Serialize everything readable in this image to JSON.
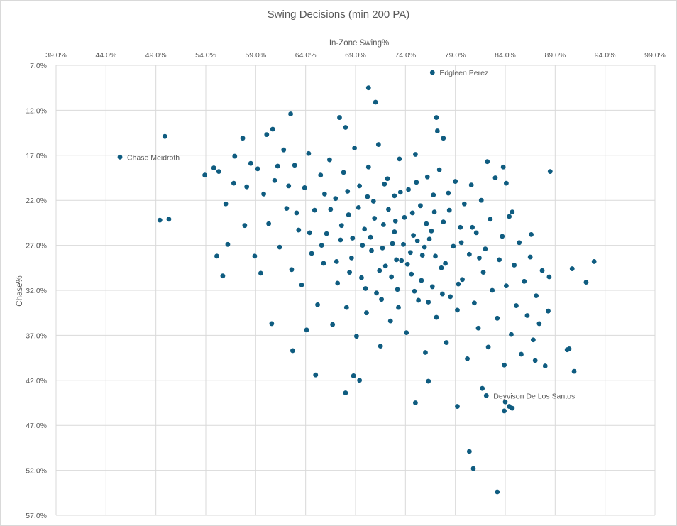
{
  "chart_data": {
    "type": "scatter",
    "title": "Swing Decisions (min 200 PA)",
    "xlabel": "In-Zone Swing%",
    "ylabel": "Chase%",
    "xlim": [
      39,
      99
    ],
    "ylim": [
      7,
      57
    ],
    "y_reversed": true,
    "x_axis_position": "top",
    "grid": true,
    "x_ticks": [
      "39.0%",
      "44.0%",
      "49.0%",
      "54.0%",
      "59.0%",
      "64.0%",
      "69.0%",
      "74.0%",
      "79.0%",
      "84.0%",
      "89.0%",
      "94.0%",
      "99.0%"
    ],
    "y_ticks": [
      "7.0%",
      "12.0%",
      "17.0%",
      "22.0%",
      "27.0%",
      "32.0%",
      "37.0%",
      "42.0%",
      "47.0%",
      "52.0%",
      "57.0%"
    ],
    "marker_color": "#0f5c80",
    "annotations": [
      {
        "label": "Edgleen Perez",
        "x": 76.7,
        "y": 7.8
      },
      {
        "label": "Chase Meidroth",
        "x": 45.4,
        "y": 17.2
      },
      {
        "label": "Deyvison De Los Santos",
        "x": 82.1,
        "y": 43.7
      }
    ],
    "points": [
      [
        49.9,
        14.9
      ],
      [
        49.4,
        24.2
      ],
      [
        50.3,
        24.1
      ],
      [
        53.9,
        19.2
      ],
      [
        54.8,
        18.4
      ],
      [
        55.3,
        18.8
      ],
      [
        55.1,
        28.2
      ],
      [
        55.7,
        30.4
      ],
      [
        56.0,
        22.4
      ],
      [
        56.2,
        26.9
      ],
      [
        56.8,
        20.1
      ],
      [
        56.9,
        17.1
      ],
      [
        57.7,
        15.1
      ],
      [
        58.1,
        20.5
      ],
      [
        58.5,
        17.9
      ],
      [
        57.9,
        24.8
      ],
      [
        58.9,
        28.2
      ],
      [
        59.5,
        30.1
      ],
      [
        60.1,
        14.7
      ],
      [
        60.7,
        14.1
      ],
      [
        60.6,
        35.7
      ],
      [
        62.5,
        12.4
      ],
      [
        62.7,
        38.7
      ],
      [
        64.1,
        36.4
      ],
      [
        65.0,
        41.4
      ],
      [
        67.4,
        12.8
      ],
      [
        68.0,
        13.9
      ],
      [
        68.0,
        43.4
      ],
      [
        68.8,
        41.5
      ],
      [
        69.4,
        42.0
      ],
      [
        70.3,
        9.5
      ],
      [
        71.0,
        11.1
      ],
      [
        77.1,
        12.8
      ],
      [
        77.2,
        14.3
      ],
      [
        77.8,
        15.1
      ],
      [
        75.0,
        44.5
      ],
      [
        76.3,
        42.1
      ],
      [
        79.2,
        44.9
      ],
      [
        81.7,
        42.9
      ],
      [
        84.0,
        44.4
      ],
      [
        83.9,
        45.4
      ],
      [
        84.4,
        44.9
      ],
      [
        84.7,
        45.1
      ],
      [
        80.4,
        49.9
      ],
      [
        80.8,
        51.8
      ],
      [
        83.2,
        54.4
      ],
      [
        88.5,
        18.8
      ],
      [
        92.9,
        28.8
      ],
      [
        90.7,
        29.6
      ],
      [
        92.1,
        31.1
      ],
      [
        90.2,
        38.6
      ],
      [
        90.4,
        38.5
      ],
      [
        90.9,
        41.0
      ],
      [
        88.0,
        40.4
      ],
      [
        88.3,
        34.3
      ],
      [
        88.4,
        30.5
      ],
      [
        87.7,
        29.8
      ],
      [
        86.6,
        25.8
      ],
      [
        84.7,
        23.3
      ],
      [
        84.1,
        20.1
      ],
      [
        83.8,
        18.3
      ],
      [
        82.2,
        17.7
      ],
      [
        87.0,
        39.8
      ],
      [
        87.4,
        35.7
      ],
      [
        59.2,
        18.5
      ],
      [
        59.8,
        21.3
      ],
      [
        60.3,
        24.6
      ],
      [
        60.9,
        19.8
      ],
      [
        61.4,
        27.2
      ],
      [
        61.8,
        16.4
      ],
      [
        62.1,
        22.9
      ],
      [
        62.6,
        29.7
      ],
      [
        62.9,
        18.1
      ],
      [
        63.3,
        25.3
      ],
      [
        63.6,
        31.4
      ],
      [
        63.9,
        20.6
      ],
      [
        64.3,
        16.8
      ],
      [
        64.6,
        27.9
      ],
      [
        64.9,
        23.1
      ],
      [
        65.2,
        33.6
      ],
      [
        65.5,
        19.2
      ],
      [
        65.8,
        29.0
      ],
      [
        66.1,
        25.7
      ],
      [
        66.4,
        17.5
      ],
      [
        66.7,
        35.8
      ],
      [
        67.0,
        21.8
      ],
      [
        67.2,
        31.2
      ],
      [
        67.5,
        26.4
      ],
      [
        67.8,
        18.9
      ],
      [
        68.1,
        33.9
      ],
      [
        68.3,
        23.6
      ],
      [
        68.6,
        28.4
      ],
      [
        68.9,
        16.2
      ],
      [
        69.1,
        37.1
      ],
      [
        69.4,
        20.4
      ],
      [
        69.6,
        30.6
      ],
      [
        69.9,
        25.2
      ],
      [
        70.1,
        34.5
      ],
      [
        70.3,
        18.3
      ],
      [
        70.6,
        27.6
      ],
      [
        70.8,
        22.1
      ],
      [
        71.1,
        32.3
      ],
      [
        71.3,
        15.8
      ],
      [
        71.5,
        38.2
      ],
      [
        71.8,
        24.7
      ],
      [
        72.0,
        29.3
      ],
      [
        72.2,
        19.6
      ],
      [
        72.5,
        35.4
      ],
      [
        72.7,
        26.8
      ],
      [
        72.9,
        21.5
      ],
      [
        73.2,
        31.9
      ],
      [
        73.4,
        17.4
      ],
      [
        73.6,
        28.7
      ],
      [
        73.9,
        23.9
      ],
      [
        74.1,
        36.7
      ],
      [
        74.3,
        20.8
      ],
      [
        74.6,
        30.2
      ],
      [
        74.8,
        25.9
      ],
      [
        75.0,
        16.9
      ],
      [
        75.3,
        33.1
      ],
      [
        75.5,
        22.6
      ],
      [
        75.7,
        28.1
      ],
      [
        76.0,
        38.9
      ],
      [
        76.2,
        19.4
      ],
      [
        76.4,
        26.3
      ],
      [
        76.7,
        31.6
      ],
      [
        76.9,
        23.3
      ],
      [
        77.1,
        35.0
      ],
      [
        77.4,
        18.6
      ],
      [
        77.6,
        29.5
      ],
      [
        77.8,
        24.4
      ],
      [
        78.1,
        37.8
      ],
      [
        78.3,
        21.2
      ],
      [
        78.5,
        32.7
      ],
      [
        78.8,
        27.1
      ],
      [
        79.0,
        19.9
      ],
      [
        79.2,
        34.2
      ],
      [
        79.5,
        25.0
      ],
      [
        79.7,
        30.8
      ],
      [
        79.9,
        22.4
      ],
      [
        80.2,
        39.6
      ],
      [
        80.4,
        28.0
      ],
      [
        80.6,
        20.3
      ],
      [
        80.9,
        33.4
      ],
      [
        81.1,
        25.6
      ],
      [
        81.3,
        36.2
      ],
      [
        81.6,
        22.0
      ],
      [
        81.8,
        30.0
      ],
      [
        82.0,
        27.4
      ],
      [
        82.3,
        38.3
      ],
      [
        82.5,
        24.1
      ],
      [
        82.7,
        32.0
      ],
      [
        83.0,
        19.5
      ],
      [
        83.2,
        35.1
      ],
      [
        83.4,
        28.6
      ],
      [
        83.7,
        26.0
      ],
      [
        83.9,
        40.3
      ],
      [
        84.1,
        31.5
      ],
      [
        84.4,
        23.8
      ],
      [
        84.6,
        36.9
      ],
      [
        84.9,
        29.2
      ],
      [
        85.1,
        33.7
      ],
      [
        85.4,
        26.7
      ],
      [
        85.6,
        39.1
      ],
      [
        85.9,
        31.0
      ],
      [
        86.2,
        34.8
      ],
      [
        86.5,
        28.3
      ],
      [
        86.8,
        37.5
      ],
      [
        87.1,
        32.6
      ],
      [
        70.5,
        26.1
      ],
      [
        71.7,
        27.3
      ],
      [
        72.9,
        25.5
      ],
      [
        73.8,
        26.9
      ],
      [
        74.5,
        27.8
      ],
      [
        75.2,
        26.5
      ],
      [
        75.9,
        27.2
      ],
      [
        76.6,
        25.4
      ],
      [
        73.1,
        28.6
      ],
      [
        74.2,
        29.1
      ],
      [
        71.4,
        29.8
      ],
      [
        72.6,
        30.5
      ],
      [
        75.6,
        30.9
      ],
      [
        77.0,
        28.2
      ],
      [
        78.0,
        29.0
      ],
      [
        73.0,
        24.3
      ],
      [
        74.7,
        23.4
      ],
      [
        76.1,
        24.6
      ],
      [
        70.9,
        24.0
      ],
      [
        72.3,
        23.0
      ],
      [
        69.7,
        27.0
      ],
      [
        68.7,
        26.2
      ],
      [
        67.6,
        24.8
      ],
      [
        66.5,
        23.0
      ],
      [
        65.9,
        21.3
      ],
      [
        68.2,
        21.0
      ],
      [
        69.3,
        22.8
      ],
      [
        70.2,
        21.6
      ],
      [
        71.9,
        20.2
      ],
      [
        73.5,
        21.1
      ],
      [
        75.1,
        20.0
      ],
      [
        76.8,
        21.4
      ],
      [
        78.4,
        23.1
      ],
      [
        79.6,
        26.7
      ],
      [
        80.7,
        25.0
      ],
      [
        81.4,
        28.4
      ],
      [
        79.3,
        31.3
      ],
      [
        77.7,
        32.4
      ],
      [
        76.3,
        33.3
      ],
      [
        74.9,
        32.1
      ],
      [
        73.3,
        33.9
      ],
      [
        71.6,
        33.0
      ],
      [
        70.0,
        31.8
      ],
      [
        68.4,
        30.0
      ],
      [
        67.1,
        28.8
      ],
      [
        65.6,
        27.0
      ],
      [
        64.4,
        25.6
      ],
      [
        63.1,
        23.4
      ],
      [
        62.3,
        20.4
      ],
      [
        61.2,
        18.2
      ]
    ]
  }
}
